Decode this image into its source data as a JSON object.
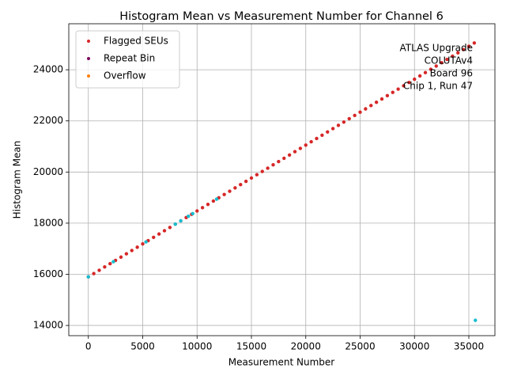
{
  "chart_data": {
    "type": "scatter",
    "title": "Histogram Mean vs Measurement Number for Channel 6",
    "x_label": "Measurement Number",
    "y_label": "Histogram Mean",
    "annotation": [
      "ATLAS Upgrade",
      "COLUTAv4",
      "Board 96",
      "Chip 1, Run 47"
    ],
    "xlim": [
      -1800,
      37400
    ],
    "ylim": [
      13600,
      25800
    ],
    "xticks": [
      0,
      5000,
      10000,
      15000,
      20000,
      25000,
      30000,
      35000
    ],
    "yticks": [
      14000,
      16000,
      18000,
      20000,
      22000,
      24000
    ],
    "grid": true,
    "legend": "upper left",
    "series": [
      {
        "name": "Flagged SEUs",
        "color": "#d62728",
        "x": [
          0,
          500,
          1000,
          1500,
          2000,
          2500,
          3000,
          3500,
          4000,
          4500,
          5000,
          5500,
          6000,
          6500,
          7000,
          7500,
          8000,
          8500,
          9000,
          9500,
          10000,
          10500,
          11000,
          11500,
          12000,
          12500,
          13000,
          13500,
          14000,
          14500,
          15000,
          15500,
          16000,
          16500,
          17000,
          17500,
          18000,
          18500,
          19000,
          19500,
          20000,
          20500,
          21000,
          21500,
          22000,
          22500,
          23000,
          23500,
          24000,
          24500,
          25000,
          25500,
          26000,
          26500,
          27000,
          27500,
          28000,
          28500,
          29000,
          29500,
          30000,
          30500,
          31000,
          31500,
          32000,
          32500,
          33000,
          33500,
          34000,
          34500,
          35000,
          35500
        ],
        "values": [
          15900,
          16029,
          16158,
          16287,
          16415,
          16544,
          16673,
          16802,
          16931,
          17060,
          17189,
          17317,
          17446,
          17575,
          17704,
          17833,
          17962,
          18090,
          18219,
          18348,
          18477,
          18606,
          18735,
          18864,
          18992,
          19121,
          19250,
          19379,
          19508,
          19637,
          19766,
          19894,
          20023,
          20152,
          20281,
          20410,
          20539,
          20667,
          20796,
          20925,
          21054,
          21183,
          21312,
          21441,
          21569,
          21698,
          21827,
          21956,
          22085,
          22214,
          22343,
          22471,
          22600,
          22729,
          22858,
          22987,
          23116,
          23244,
          23373,
          23502,
          23631,
          23760,
          23889,
          24018,
          24146,
          24275,
          24404,
          24533,
          24662,
          24791,
          24920,
          25048
        ]
      },
      {
        "name": "Repeat Bin",
        "color": "#7b0a5e",
        "x": [],
        "values": []
      },
      {
        "name": "Overflow",
        "color": "#ff7f0e",
        "x": [],
        "values": []
      },
      {
        "color": "#17becf",
        "x": [
          0,
          2300,
          5300,
          8000,
          8500,
          9200,
          9600,
          11800,
          35600
        ],
        "values": [
          15900,
          16493,
          17266,
          17962,
          18090,
          18271,
          18374,
          18941,
          14200
        ]
      }
    ]
  }
}
